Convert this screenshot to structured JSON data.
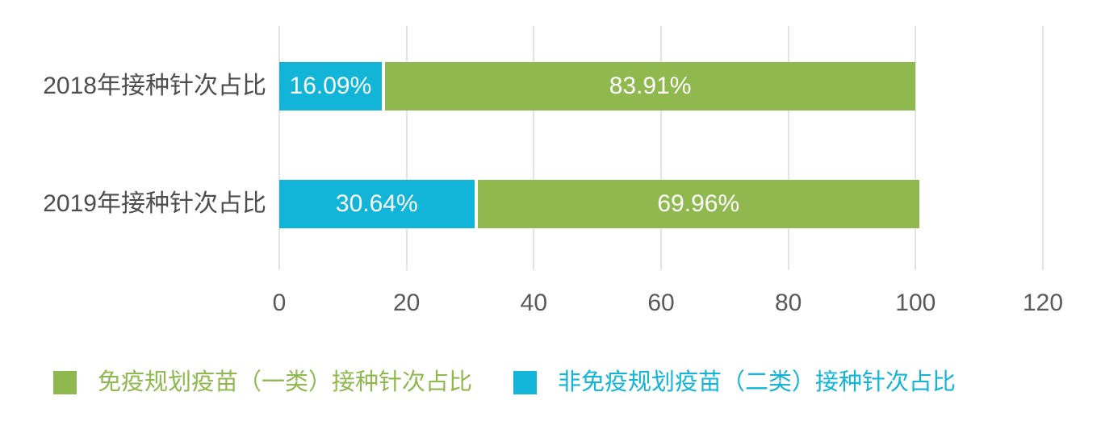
{
  "chart_data": {
    "type": "bar",
    "orientation": "horizontal",
    "stacked": true,
    "title": "",
    "categories": [
      "2018年接种针次占比",
      "2019年接种针次占比"
    ],
    "series": [
      {
        "name": "非免疫规划疫苗（二类）接种针次占比",
        "color": "#12b5d8",
        "values": [
          16.09,
          30.64
        ],
        "data_labels": [
          "16.09%",
          "30.64%"
        ]
      },
      {
        "name": "免疫规划疫苗（一类）接种针次占比",
        "color": "#8fb84e",
        "values": [
          83.91,
          69.96
        ],
        "data_labels": [
          "83.91%",
          "69.96%"
        ]
      }
    ],
    "x_axis": {
      "ticks": [
        "0",
        "20",
        "40",
        "60",
        "80",
        "100",
        "120"
      ],
      "tick_values": [
        0,
        20,
        40,
        60,
        80,
        100,
        120
      ],
      "min": 0,
      "max": 120
    },
    "grid": true,
    "legend": {
      "position": "bottom",
      "items": [
        {
          "label": "免疫规划疫苗（一类）接种针次占比",
          "color": "#8fb84e"
        },
        {
          "label": "非免疫规划疫苗（二类）接种针次占比",
          "color": "#12b5d8"
        }
      ]
    },
    "colors": {
      "background": "#ffffff",
      "grid_line": "#e3e3e3",
      "axis_tick_text": "#595959",
      "category_label_text": "#4d4d4d",
      "bar_label_text": "#ffffff"
    }
  }
}
